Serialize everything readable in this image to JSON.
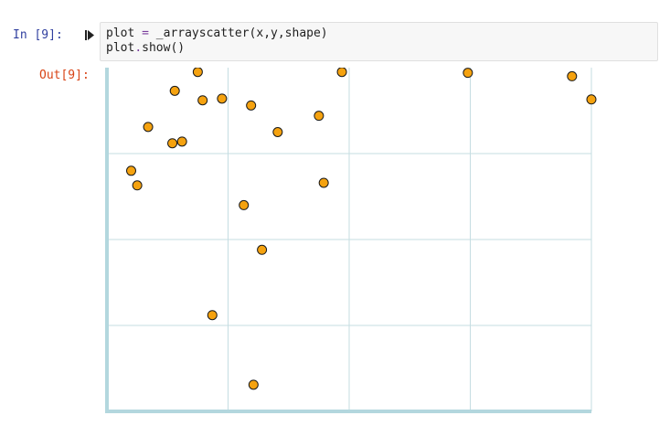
{
  "cell": {
    "in_prompt": "In [9]:",
    "out_prompt": "Out[9]:",
    "code_lines": [
      [
        {
          "t": "plot",
          "k": "name"
        },
        {
          "t": " ",
          "k": "punct"
        },
        {
          "t": "=",
          "k": "op"
        },
        {
          "t": " _arrayscatter(x,y,shape)",
          "k": "punct"
        }
      ],
      [
        {
          "t": "plot",
          "k": "name"
        },
        {
          "t": ".",
          "k": "op"
        },
        {
          "t": "show()",
          "k": "punct"
        }
      ]
    ]
  },
  "colors": {
    "grid": "#c5dde2",
    "axis": "#b3d7de",
    "marker_fill": "#f5a20f",
    "marker_stroke": "#1a1a1a"
  },
  "chart_data": {
    "type": "scatter",
    "title": "",
    "xlabel": "",
    "ylabel": "",
    "grid": true,
    "xlim": [
      0,
      4
    ],
    "ylim": [
      0,
      4
    ],
    "x_gridlines": [
      1,
      2,
      3
    ],
    "y_gridlines": [
      1,
      2,
      3
    ],
    "points": [
      {
        "x": 0.2,
        "y": 2.8
      },
      {
        "x": 0.25,
        "y": 2.63
      },
      {
        "x": 0.34,
        "y": 3.31
      },
      {
        "x": 0.54,
        "y": 3.12
      },
      {
        "x": 0.62,
        "y": 3.14
      },
      {
        "x": 0.56,
        "y": 3.73
      },
      {
        "x": 0.75,
        "y": 3.95
      },
      {
        "x": 0.79,
        "y": 3.62
      },
      {
        "x": 0.95,
        "y": 3.64
      },
      {
        "x": 0.87,
        "y": 1.12
      },
      {
        "x": 1.13,
        "y": 2.4
      },
      {
        "x": 1.19,
        "y": 3.56
      },
      {
        "x": 1.21,
        "y": 0.31
      },
      {
        "x": 1.28,
        "y": 1.88
      },
      {
        "x": 1.41,
        "y": 3.25
      },
      {
        "x": 1.75,
        "y": 3.44
      },
      {
        "x": 1.79,
        "y": 2.66
      },
      {
        "x": 1.94,
        "y": 3.95
      },
      {
        "x": 2.98,
        "y": 3.94
      },
      {
        "x": 3.84,
        "y": 3.9
      },
      {
        "x": 4.0,
        "y": 3.63
      }
    ]
  }
}
